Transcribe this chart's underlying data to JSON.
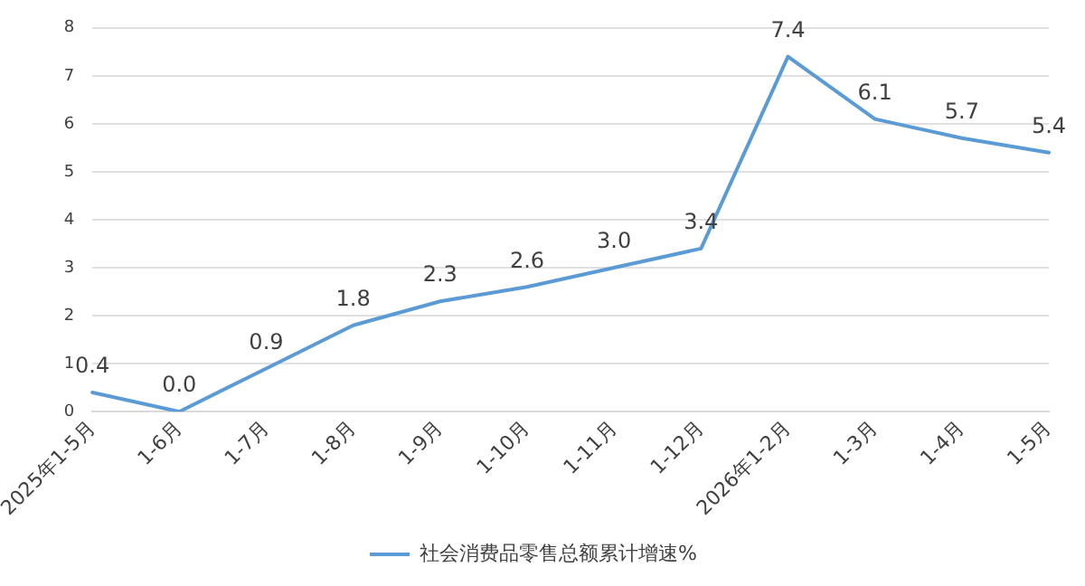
{
  "chart_data": {
    "type": "line",
    "categories": [
      "2025年1-5月",
      "1-6月",
      "1-7月",
      "1-8月",
      "1-9月",
      "1-10月",
      "1-11月",
      "1-12月",
      "2026年1-2月",
      "1-3月",
      "1-4月",
      "1-5月"
    ],
    "series": [
      {
        "name": "社会消费品零售总额累计增速%",
        "color": "#5b9bd5",
        "values": [
          0.4,
          0.0,
          0.9,
          1.8,
          2.3,
          2.6,
          3.0,
          3.4,
          7.4,
          6.1,
          5.7,
          5.4
        ],
        "value_labels": [
          "0.4",
          "0.0",
          "0.9",
          "1.8",
          "2.3",
          "2.6",
          "3.0",
          "3.4",
          "7.4",
          "6.1",
          "5.7",
          "5.4"
        ]
      }
    ],
    "ylim": [
      0,
      8
    ],
    "yticks": [
      0,
      1,
      2,
      3,
      4,
      5,
      6,
      7,
      8
    ],
    "grid": "y",
    "legend": "bottom",
    "marker": "none",
    "line_style": "solid"
  }
}
